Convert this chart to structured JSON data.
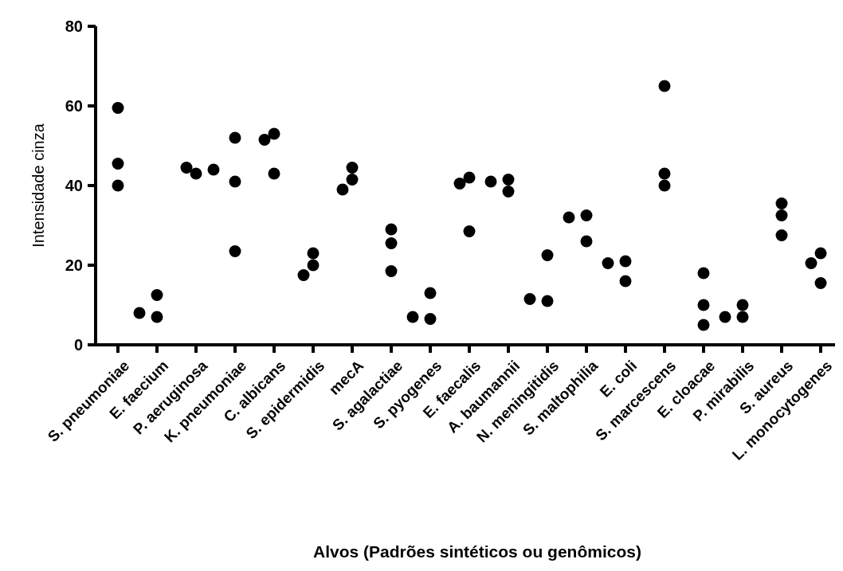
{
  "chart_data": {
    "type": "scatter",
    "xlabel": "Alvos (Padrões sintéticos ou genômicos)",
    "ylabel": "Intensidade cinza",
    "categories": [
      "S. pneumoniae",
      "E. faecium",
      "P. aeruginosa",
      "K. pneumoniae",
      "C. albicans",
      "S. epidermidis",
      "mecA",
      "S. agalactiae",
      "S. pyogenes",
      "E. faecalis",
      "A. baumannii",
      "N. meningitidis",
      "S. maltophilia",
      "E. coli",
      "S. marcescens",
      "E. cloacae",
      "P. mirabilis",
      "S. aureus",
      "L. monocytogenes"
    ],
    "series": [
      {
        "color": "#000000",
        "values": [
          59.5,
          7,
          43,
          52,
          53,
          23,
          44.5,
          29,
          6.5,
          42,
          41.5,
          11,
          32.5,
          21,
          65,
          18,
          7,
          35.5,
          23
        ]
      },
      {
        "color": "#000000",
        "values": [
          45.5,
          12.5,
          44.5,
          41,
          43,
          20,
          41.5,
          25.5,
          13,
          28.5,
          38.5,
          22.5,
          26,
          16,
          43,
          10,
          10,
          32.5,
          20.5
        ]
      },
      {
        "color": "#000000",
        "values": [
          40,
          8,
          44,
          23.5,
          51.5,
          17.5,
          39,
          18.5,
          7,
          40.5,
          41,
          11.5,
          32,
          20.5,
          40,
          5,
          7,
          27.5,
          15.5
        ]
      }
    ],
    "ylim": [
      0,
      80
    ],
    "yticks": [
      0,
      20,
      40,
      60,
      80
    ],
    "grid": false,
    "marker": "circle"
  }
}
